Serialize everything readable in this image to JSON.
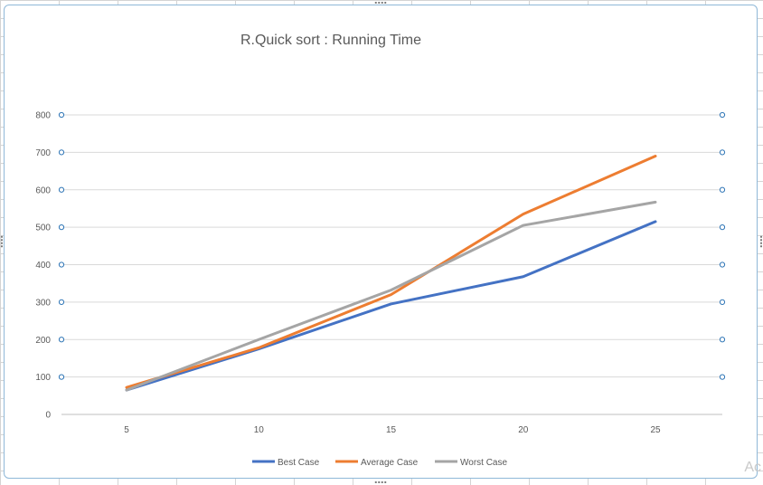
{
  "chart_data": {
    "type": "line",
    "title": "R.Quick sort : Running Time",
    "categories": [
      "5",
      "10",
      "15",
      "20",
      "25"
    ],
    "ylim": [
      0,
      800
    ],
    "yticks": [
      "0",
      "100",
      "200",
      "300",
      "400",
      "500",
      "600",
      "700",
      "800"
    ],
    "grid": true,
    "legend_position": "bottom",
    "series": [
      {
        "name": "Best Case",
        "color": "#4472c4",
        "values": [
          65,
          175,
          295,
          368,
          515
        ]
      },
      {
        "name": "Average Case",
        "color": "#ed7d31",
        "values": [
          72,
          178,
          320,
          535,
          690
        ]
      },
      {
        "name": "Worst Case",
        "color": "#a5a5a5",
        "values": [
          65,
          200,
          332,
          505,
          567
        ]
      }
    ]
  },
  "corner_text": "Ac"
}
